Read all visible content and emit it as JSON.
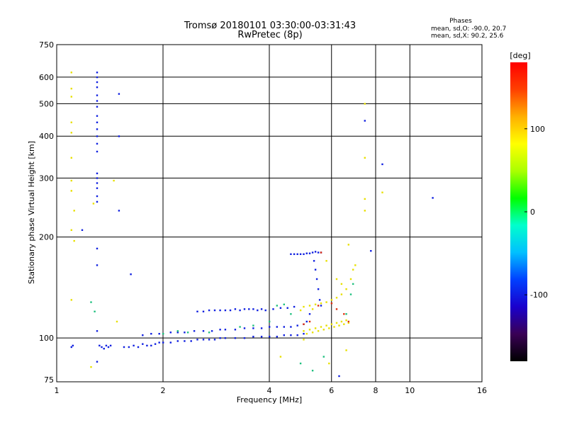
{
  "chart_data": {
    "type": "scatter",
    "title": "Tromsø 20180101 03:30:00-03:31:43",
    "subtitle": "RwPretec (8p)",
    "xlabel": "Frequency [MHz]",
    "ylabel": "Stationary phase Virtual Height [km]",
    "x_scale": "log",
    "y_scale": "log",
    "xlim": [
      1,
      16
    ],
    "ylim": [
      74,
      750
    ],
    "x_ticks": [
      1,
      2,
      4,
      6,
      8,
      10,
      16
    ],
    "y_ticks": [
      75,
      100,
      200,
      300,
      400,
      500,
      600,
      750
    ],
    "grid": true,
    "phases_box": {
      "heading": "Phases",
      "line1": "mean, sd,O: -90.0, 20.7",
      "line2": "mean, sd,X:  90.2, 25.6"
    },
    "colorbar": {
      "label": "[deg]",
      "range": [
        -180,
        180
      ],
      "ticks": [
        100,
        0,
        -100
      ],
      "colormap": [
        "#000000",
        "#3a0055",
        "#1a00cc",
        "#0040ff",
        "#00c0ff",
        "#00ffcc",
        "#00ff00",
        "#aaff00",
        "#ffff00",
        "#ffb000",
        "#ff4000",
        "#ff0000"
      ]
    },
    "series": [
      {
        "id": "o_mode",
        "phase": -90,
        "color": "#1020e0",
        "points": [
          [
            1.3,
            620
          ],
          [
            1.3,
            600
          ],
          [
            1.3,
            580
          ],
          [
            1.3,
            560
          ],
          [
            1.3,
            530
          ],
          [
            1.3,
            510
          ],
          [
            1.3,
            490
          ],
          [
            1.3,
            460
          ],
          [
            1.3,
            440
          ],
          [
            1.3,
            420
          ],
          [
            1.3,
            400
          ],
          [
            1.3,
            380
          ],
          [
            1.3,
            360
          ],
          [
            1.3,
            310
          ],
          [
            1.3,
            300
          ],
          [
            1.3,
            290
          ],
          [
            1.3,
            280
          ],
          [
            1.3,
            265
          ],
          [
            1.3,
            255
          ],
          [
            1.3,
            185
          ],
          [
            1.3,
            165
          ],
          [
            1.3,
            105
          ],
          [
            1.3,
            85
          ],
          [
            1.18,
            210
          ],
          [
            1.5,
            535
          ],
          [
            1.5,
            400
          ],
          [
            1.5,
            240
          ],
          [
            1.62,
            155
          ],
          [
            1.1,
            94
          ],
          [
            1.11,
            95
          ],
          [
            1.32,
            95
          ],
          [
            1.34,
            94
          ],
          [
            1.36,
            93
          ],
          [
            1.38,
            95
          ],
          [
            1.4,
            94
          ],
          [
            1.42,
            95
          ],
          [
            1.55,
            94
          ],
          [
            1.6,
            94
          ],
          [
            1.65,
            95
          ],
          [
            1.7,
            94
          ],
          [
            1.75,
            96
          ],
          [
            1.8,
            95
          ],
          [
            1.85,
            95
          ],
          [
            1.9,
            96
          ],
          [
            1.95,
            97
          ],
          [
            2.0,
            97
          ],
          [
            2.1,
            97
          ],
          [
            2.2,
            98
          ],
          [
            2.3,
            98
          ],
          [
            2.4,
            98
          ],
          [
            2.5,
            99
          ],
          [
            2.6,
            99
          ],
          [
            2.7,
            99
          ],
          [
            2.8,
            99
          ],
          [
            2.9,
            100
          ],
          [
            3.0,
            100
          ],
          [
            3.2,
            100
          ],
          [
            3.4,
            100
          ],
          [
            3.6,
            101
          ],
          [
            3.8,
            101
          ],
          [
            4.0,
            101
          ],
          [
            4.2,
            101
          ],
          [
            4.4,
            102
          ],
          [
            4.6,
            102
          ],
          [
            4.8,
            102
          ],
          [
            5.0,
            103
          ],
          [
            1.75,
            102
          ],
          [
            1.85,
            103
          ],
          [
            1.95,
            103
          ],
          [
            2.1,
            104
          ],
          [
            2.2,
            104
          ],
          [
            2.3,
            104
          ],
          [
            2.45,
            105
          ],
          [
            2.6,
            105
          ],
          [
            2.75,
            105
          ],
          [
            2.9,
            106
          ],
          [
            3.0,
            106
          ],
          [
            3.2,
            106
          ],
          [
            3.4,
            107
          ],
          [
            3.6,
            107
          ],
          [
            3.8,
            107
          ],
          [
            4.0,
            108
          ],
          [
            4.2,
            108
          ],
          [
            4.4,
            108
          ],
          [
            4.6,
            108
          ],
          [
            4.8,
            109
          ],
          [
            2.5,
            120
          ],
          [
            2.6,
            120
          ],
          [
            2.7,
            121
          ],
          [
            2.8,
            121
          ],
          [
            2.9,
            121
          ],
          [
            3.0,
            121
          ],
          [
            3.1,
            121
          ],
          [
            3.2,
            122
          ],
          [
            3.3,
            121
          ],
          [
            3.4,
            122
          ],
          [
            3.5,
            122
          ],
          [
            3.6,
            122
          ],
          [
            3.7,
            121
          ],
          [
            3.8,
            122
          ],
          [
            3.9,
            121
          ],
          [
            4.1,
            122
          ],
          [
            4.3,
            123
          ],
          [
            4.5,
            123
          ],
          [
            4.7,
            124
          ],
          [
            4.6,
            178
          ],
          [
            4.7,
            178
          ],
          [
            4.8,
            178
          ],
          [
            4.9,
            178
          ],
          [
            5.0,
            178
          ],
          [
            5.1,
            179
          ],
          [
            5.2,
            179
          ],
          [
            5.3,
            180
          ],
          [
            5.4,
            181
          ],
          [
            5.5,
            180
          ],
          [
            5.6,
            180
          ],
          [
            5.35,
            170
          ],
          [
            5.4,
            160
          ],
          [
            5.45,
            150
          ],
          [
            5.5,
            140
          ],
          [
            5.55,
            130
          ],
          [
            5.6,
            125
          ],
          [
            5.2,
            118
          ],
          [
            5.1,
            112
          ],
          [
            5.0,
            110
          ],
          [
            6.3,
            77
          ],
          [
            7.45,
            445
          ],
          [
            8.35,
            330
          ],
          [
            11.6,
            262
          ],
          [
            7.75,
            182
          ]
        ]
      },
      {
        "id": "x_mode",
        "phase": 90,
        "color": "#e8e000",
        "points": [
          [
            1.1,
            620
          ],
          [
            1.1,
            555
          ],
          [
            1.1,
            525
          ],
          [
            1.1,
            440
          ],
          [
            1.1,
            410
          ],
          [
            1.1,
            345
          ],
          [
            1.1,
            295
          ],
          [
            1.1,
            275
          ],
          [
            1.12,
            240
          ],
          [
            1.1,
            210
          ],
          [
            1.12,
            195
          ],
          [
            1.1,
            130
          ],
          [
            1.27,
            252
          ],
          [
            1.45,
            295
          ],
          [
            1.48,
            112
          ],
          [
            1.25,
            82
          ],
          [
            5.0,
            105
          ],
          [
            5.2,
            106
          ],
          [
            5.4,
            107
          ],
          [
            5.6,
            108
          ],
          [
            5.8,
            109
          ],
          [
            6.0,
            110
          ],
          [
            6.2,
            111
          ],
          [
            6.4,
            112
          ],
          [
            6.6,
            113
          ],
          [
            5.1,
            103
          ],
          [
            5.3,
            104
          ],
          [
            5.5,
            105
          ],
          [
            5.7,
            106
          ],
          [
            5.9,
            107
          ],
          [
            6.1,
            108
          ],
          [
            6.3,
            109
          ],
          [
            6.5,
            110
          ],
          [
            6.7,
            111
          ],
          [
            5.0,
            124
          ],
          [
            5.2,
            125
          ],
          [
            5.4,
            126
          ],
          [
            5.6,
            127
          ],
          [
            5.8,
            128
          ],
          [
            6.0,
            130
          ],
          [
            6.2,
            132
          ],
          [
            6.4,
            135
          ],
          [
            6.6,
            140
          ],
          [
            6.8,
            150
          ],
          [
            6.9,
            160
          ],
          [
            7.0,
            165
          ],
          [
            6.7,
            190
          ],
          [
            5.8,
            170
          ],
          [
            6.2,
            150
          ],
          [
            6.4,
            145
          ],
          [
            5.3,
            122
          ],
          [
            4.9,
            121
          ],
          [
            7.45,
            500
          ],
          [
            7.45,
            345
          ],
          [
            7.45,
            260
          ],
          [
            7.45,
            240
          ],
          [
            8.35,
            272
          ],
          [
            6.6,
            92
          ],
          [
            4.3,
            88
          ],
          [
            5.9,
            84
          ],
          [
            5.0,
            99
          ]
        ]
      },
      {
        "id": "transitional",
        "phase": 20,
        "color": "#20c080",
        "points": [
          [
            1.25,
            128
          ],
          [
            1.28,
            120
          ],
          [
            2.0,
            103
          ],
          [
            2.2,
            105
          ],
          [
            2.35,
            104
          ],
          [
            2.7,
            104
          ],
          [
            3.3,
            108
          ],
          [
            3.6,
            109
          ],
          [
            4.0,
            112
          ],
          [
            4.2,
            125
          ],
          [
            4.4,
            126
          ],
          [
            4.6,
            118
          ],
          [
            4.9,
            84
          ],
          [
            5.3,
            80
          ],
          [
            5.7,
            88
          ],
          [
            6.6,
            118
          ],
          [
            6.8,
            135
          ],
          [
            6.9,
            145
          ]
        ]
      },
      {
        "id": "red_phase",
        "phase": 170,
        "color": "#e03010",
        "points": [
          [
            5.0,
            110
          ],
          [
            5.2,
            112
          ],
          [
            5.5,
            125
          ],
          [
            5.6,
            180
          ],
          [
            6.0,
            127
          ],
          [
            6.2,
            122
          ],
          [
            6.5,
            118
          ],
          [
            6.7,
            112
          ]
        ]
      }
    ]
  }
}
